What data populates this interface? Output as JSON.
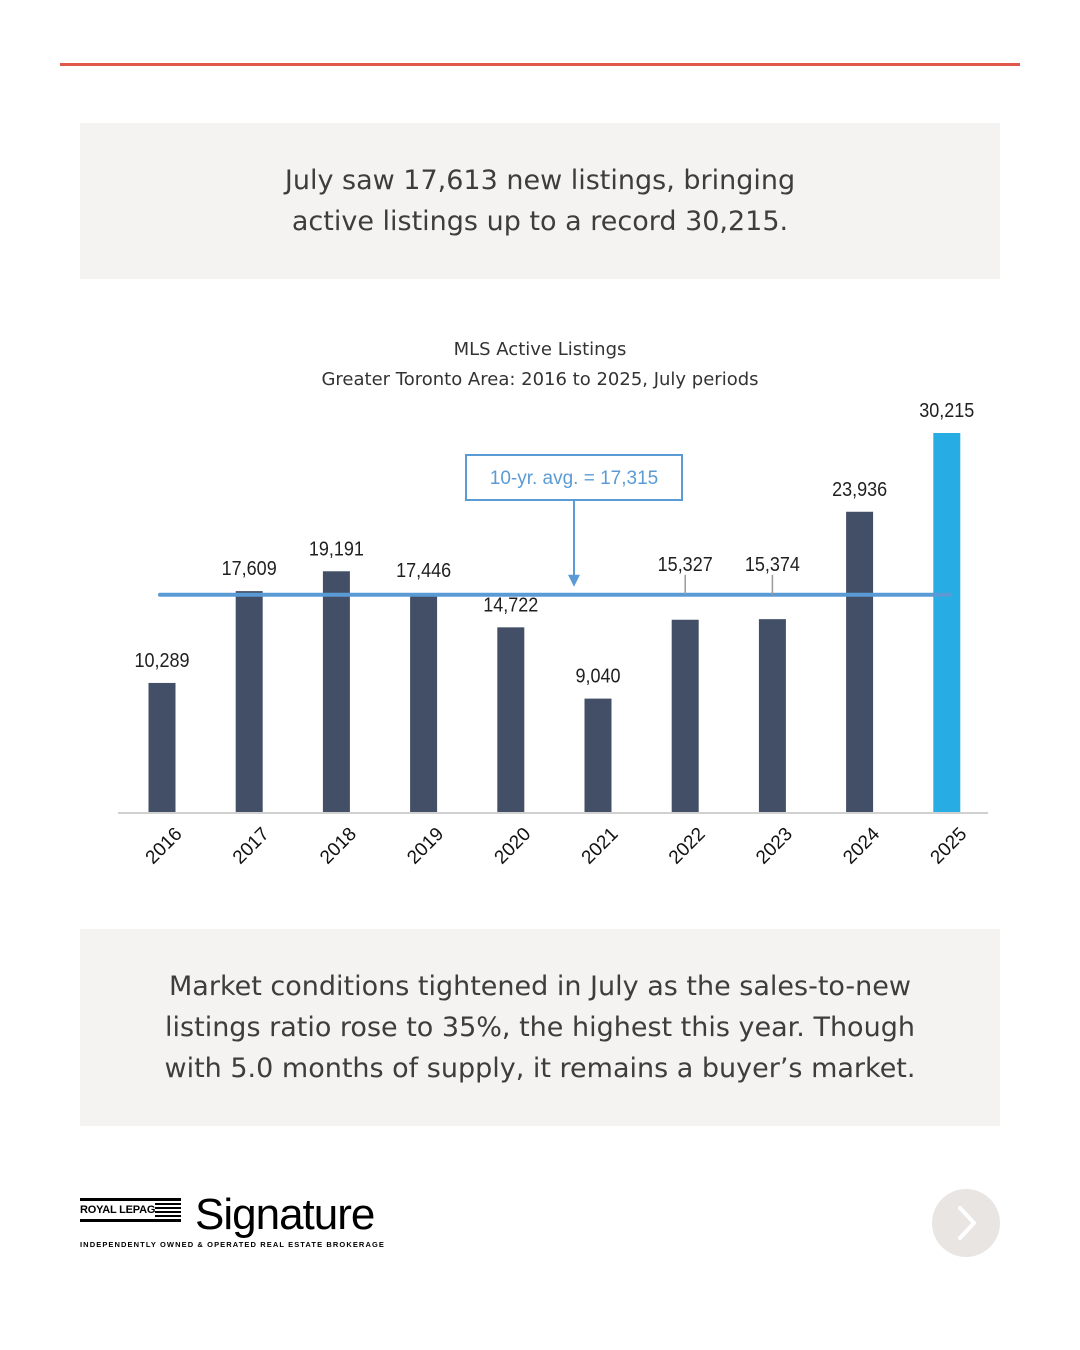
{
  "headline": "July saw 17,613 new listings, bringing active listings up to a record 30,215.",
  "chart_data": {
    "type": "bar",
    "title": "MLS Active Listings",
    "subtitle": "Greater Toronto Area: 2016 to 2025, July periods",
    "categories": [
      "2016",
      "2017",
      "2018",
      "2019",
      "2020",
      "2021",
      "2022",
      "2023",
      "2024",
      "2025"
    ],
    "values": [
      10289,
      17609,
      19191,
      17446,
      14722,
      9040,
      15327,
      15374,
      23936,
      30215
    ],
    "value_labels": [
      "10,289",
      "17,609",
      "19,191",
      "17,446",
      "14,722",
      "9,040",
      "15,327",
      "15,374",
      "23,936",
      "30,215"
    ],
    "highlight_index": 9,
    "average": {
      "value": 17315,
      "label": "10-yr. avg. = 17,315"
    },
    "xlabel": "",
    "ylabel": "",
    "ylim": [
      0,
      30215
    ],
    "grid": false,
    "colors": {
      "bar": "#434f66",
      "highlight": "#27ade3",
      "average_line": "#5b9bd5"
    }
  },
  "summary": "Market conditions tightened in July as the sales-to-new listings ratio rose to 35%, the highest this year. Though with 5.0 months of supply, it remains a buyer’s market.",
  "logo": {
    "royal_lepage": "ROYAL LEPAGE",
    "brand": "Signature",
    "tagline": "INDEPENDENTLY OWNED & OPERATED REAL ESTATE BROKERAGE"
  },
  "colors": {
    "accent_rule": "#e2574c",
    "box_bg": "#f4f3f1",
    "next_button_bg": "#e8e5e2"
  },
  "nav": {
    "next_icon": "chevron-right-icon"
  }
}
